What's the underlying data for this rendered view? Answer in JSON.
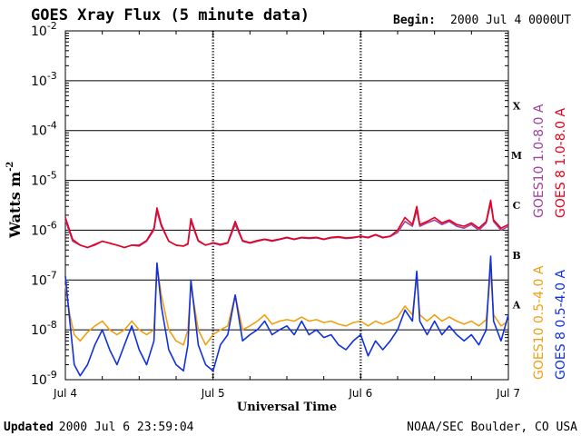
{
  "chart_data": {
    "type": "line",
    "title": "GOES Xray Flux (5 minute data)",
    "begin_label": "Begin:",
    "begin_value": "2000 Jul 4 0000UT",
    "xlabel": "Universal Time",
    "ylabel": "Watts m",
    "ylabel_sup": "-2",
    "y_scale": "log",
    "ylim": [
      1e-09,
      0.01
    ],
    "x_ticks": [
      "Jul 4",
      "Jul 5",
      "Jul 6",
      "Jul 7"
    ],
    "xlim_days": [
      0,
      3
    ],
    "y_tick_base": "10",
    "y_tick_exponents": [
      "-2",
      "-3",
      "-4",
      "-5",
      "-6",
      "-7",
      "-8",
      "-9"
    ],
    "flare_classes": [
      "X",
      "M",
      "C",
      "B",
      "A"
    ],
    "series": [
      {
        "name": "GOES10 1.0-8.0 A",
        "color": "#a040a0",
        "x": [
          0,
          0.05,
          0.1,
          0.15,
          0.2,
          0.25,
          0.3,
          0.35,
          0.4,
          0.45,
          0.5,
          0.55,
          0.6,
          0.62,
          0.65,
          0.7,
          0.75,
          0.8,
          0.83,
          0.85,
          0.9,
          0.95,
          1.0,
          1.05,
          1.1,
          1.15,
          1.2,
          1.25,
          1.3,
          1.35,
          1.4,
          1.45,
          1.5,
          1.55,
          1.6,
          1.65,
          1.7,
          1.75,
          1.8,
          1.85,
          1.9,
          1.95,
          2.0,
          2.05,
          2.1,
          2.15,
          2.2,
          2.25,
          2.3,
          2.35,
          2.38,
          2.4,
          2.45,
          2.5,
          2.55,
          2.6,
          2.65,
          2.7,
          2.75,
          2.8,
          2.85,
          2.88,
          2.9,
          2.95,
          3.0
        ],
        "values": [
          1.6e-06,
          6e-07,
          5e-07,
          4.5e-07,
          5e-07,
          6e-07,
          5.5e-07,
          5e-07,
          4.5e-07,
          5e-07,
          4.8e-07,
          6e-07,
          1e-06,
          2.4e-06,
          1.2e-06,
          6e-07,
          5e-07,
          4.8e-07,
          5.2e-07,
          1.5e-06,
          6e-07,
          5e-07,
          5.5e-07,
          5e-07,
          5.5e-07,
          1.3e-06,
          6e-07,
          5.5e-07,
          6e-07,
          6.5e-07,
          6e-07,
          6.5e-07,
          7e-07,
          6.5e-07,
          7e-07,
          6.8e-07,
          7e-07,
          6.5e-07,
          7e-07,
          7.2e-07,
          6.8e-07,
          7e-07,
          7.5e-07,
          7e-07,
          8e-07,
          7e-07,
          7.5e-07,
          9e-07,
          1.5e-06,
          1.2e-06,
          2.5e-06,
          1.2e-06,
          1.4e-06,
          1.6e-06,
          1.3e-06,
          1.5e-06,
          1.2e-06,
          1.1e-06,
          1.3e-06,
          1e-06,
          1.4e-06,
          3.5e-06,
          1.5e-06,
          1e-06,
          1.2e-06
        ]
      },
      {
        "name": "GOES 8 1.0-8.0 A",
        "color": "#e8001c",
        "x": [
          0,
          0.05,
          0.1,
          0.15,
          0.2,
          0.25,
          0.3,
          0.35,
          0.4,
          0.45,
          0.5,
          0.55,
          0.6,
          0.62,
          0.65,
          0.7,
          0.75,
          0.8,
          0.83,
          0.85,
          0.9,
          0.95,
          1.0,
          1.05,
          1.1,
          1.15,
          1.2,
          1.25,
          1.3,
          1.35,
          1.4,
          1.45,
          1.5,
          1.55,
          1.6,
          1.65,
          1.7,
          1.75,
          1.8,
          1.85,
          1.9,
          1.95,
          2.0,
          2.05,
          2.1,
          2.15,
          2.2,
          2.25,
          2.3,
          2.35,
          2.38,
          2.4,
          2.45,
          2.5,
          2.55,
          2.6,
          2.65,
          2.7,
          2.75,
          2.8,
          2.85,
          2.88,
          2.9,
          2.95,
          3.0
        ],
        "values": [
          1.8e-06,
          6.5e-07,
          5e-07,
          4.5e-07,
          5.2e-07,
          6e-07,
          5.5e-07,
          5e-07,
          4.5e-07,
          5e-07,
          5e-07,
          6.2e-07,
          1.1e-06,
          2.8e-06,
          1.3e-06,
          6e-07,
          5e-07,
          4.8e-07,
          5.4e-07,
          1.7e-06,
          6.2e-07,
          5e-07,
          5.6e-07,
          5.2e-07,
          5.6e-07,
          1.5e-06,
          6.2e-07,
          5.6e-07,
          6.2e-07,
          6.6e-07,
          6.2e-07,
          6.6e-07,
          7.2e-07,
          6.6e-07,
          7.2e-07,
          7e-07,
          7.2e-07,
          6.6e-07,
          7.2e-07,
          7.4e-07,
          7e-07,
          7.2e-07,
          7.6e-07,
          7.2e-07,
          8.2e-07,
          7.2e-07,
          7.6e-07,
          1e-06,
          1.8e-06,
          1.3e-06,
          3e-06,
          1.3e-06,
          1.5e-06,
          1.8e-06,
          1.4e-06,
          1.6e-06,
          1.3e-06,
          1.2e-06,
          1.4e-06,
          1.1e-06,
          1.5e-06,
          4e-06,
          1.6e-06,
          1.1e-06,
          1.3e-06
        ]
      },
      {
        "name": "GOES10 0.5-4.0 A",
        "color": "#f0a010",
        "x": [
          0,
          0.03,
          0.06,
          0.1,
          0.15,
          0.2,
          0.25,
          0.3,
          0.35,
          0.4,
          0.45,
          0.5,
          0.55,
          0.6,
          0.62,
          0.65,
          0.7,
          0.75,
          0.8,
          0.83,
          0.85,
          0.9,
          0.95,
          1.0,
          1.05,
          1.1,
          1.15,
          1.2,
          1.25,
          1.3,
          1.35,
          1.4,
          1.45,
          1.5,
          1.55,
          1.6,
          1.65,
          1.7,
          1.75,
          1.8,
          1.85,
          1.9,
          1.95,
          2.0,
          2.05,
          2.1,
          2.15,
          2.2,
          2.25,
          2.3,
          2.35,
          2.38,
          2.4,
          2.45,
          2.5,
          2.55,
          2.6,
          2.65,
          2.7,
          2.75,
          2.8,
          2.85,
          2.88,
          2.9,
          2.95,
          3.0
        ],
        "values": [
          8e-08,
          2e-08,
          8e-09,
          6e-09,
          9e-09,
          1.2e-08,
          1.5e-08,
          1e-08,
          8e-09,
          1e-08,
          1.5e-08,
          1e-08,
          8e-09,
          1e-08,
          2e-07,
          5e-08,
          1e-08,
          6e-09,
          5e-09,
          1e-08,
          8e-08,
          1e-08,
          5e-09,
          8e-09,
          1e-08,
          1.2e-08,
          5e-08,
          1e-08,
          1.2e-08,
          1.5e-08,
          2e-08,
          1.3e-08,
          1.5e-08,
          1.6e-08,
          1.5e-08,
          1.8e-08,
          1.5e-08,
          1.6e-08,
          1.4e-08,
          1.5e-08,
          1.3e-08,
          1.2e-08,
          1.4e-08,
          1.5e-08,
          1.2e-08,
          1.5e-08,
          1.3e-08,
          1.5e-08,
          1.8e-08,
          3e-08,
          2e-08,
          1.2e-07,
          2e-08,
          1.5e-08,
          2e-08,
          1.5e-08,
          1.8e-08,
          1.5e-08,
          1.3e-08,
          1.5e-08,
          1.2e-08,
          1.6e-08,
          1.5e-07,
          2e-08,
          1.2e-08,
          1.5e-08
        ]
      },
      {
        "name": "GOES 8 0.5-4.0 A",
        "color": "#1030e0",
        "x": [
          0,
          0.03,
          0.06,
          0.1,
          0.15,
          0.2,
          0.25,
          0.3,
          0.35,
          0.4,
          0.45,
          0.5,
          0.55,
          0.6,
          0.62,
          0.65,
          0.7,
          0.75,
          0.8,
          0.83,
          0.85,
          0.9,
          0.95,
          1.0,
          1.05,
          1.1,
          1.15,
          1.2,
          1.25,
          1.3,
          1.35,
          1.4,
          1.45,
          1.5,
          1.55,
          1.6,
          1.65,
          1.7,
          1.75,
          1.8,
          1.85,
          1.9,
          1.95,
          2.0,
          2.05,
          2.1,
          2.15,
          2.2,
          2.25,
          2.3,
          2.35,
          2.38,
          2.4,
          2.45,
          2.5,
          2.55,
          2.6,
          2.65,
          2.7,
          2.75,
          2.8,
          2.85,
          2.88,
          2.9,
          2.95,
          3.0
        ],
        "values": [
          1.2e-07,
          1.5e-08,
          2e-09,
          1.2e-09,
          2e-09,
          5e-09,
          1e-08,
          4e-09,
          2e-09,
          5e-09,
          1.2e-08,
          4e-09,
          2e-09,
          6e-09,
          2.2e-07,
          3e-08,
          4e-09,
          2e-09,
          1.5e-09,
          5e-09,
          1e-07,
          5e-09,
          2e-09,
          1.5e-09,
          5e-09,
          8e-09,
          5e-08,
          6e-09,
          8e-09,
          1e-08,
          1.5e-08,
          8e-09,
          1e-08,
          1.2e-08,
          8e-09,
          1.5e-08,
          8e-09,
          1e-08,
          7e-09,
          8e-09,
          5e-09,
          4e-09,
          6e-09,
          8e-09,
          3e-09,
          6e-09,
          4e-09,
          6e-09,
          1e-08,
          2.5e-08,
          1.5e-08,
          1.5e-07,
          1.5e-08,
          8e-09,
          1.5e-08,
          8e-09,
          1.2e-08,
          8e-09,
          6e-09,
          8e-09,
          5e-09,
          1e-08,
          3e-07,
          1.5e-08,
          6e-09,
          2e-08
        ]
      }
    ]
  },
  "footer": {
    "updated_label": "Updated",
    "updated_value": "2000 Jul  6 23:59:04",
    "source": "NOAA/SEC Boulder, CO USA"
  }
}
